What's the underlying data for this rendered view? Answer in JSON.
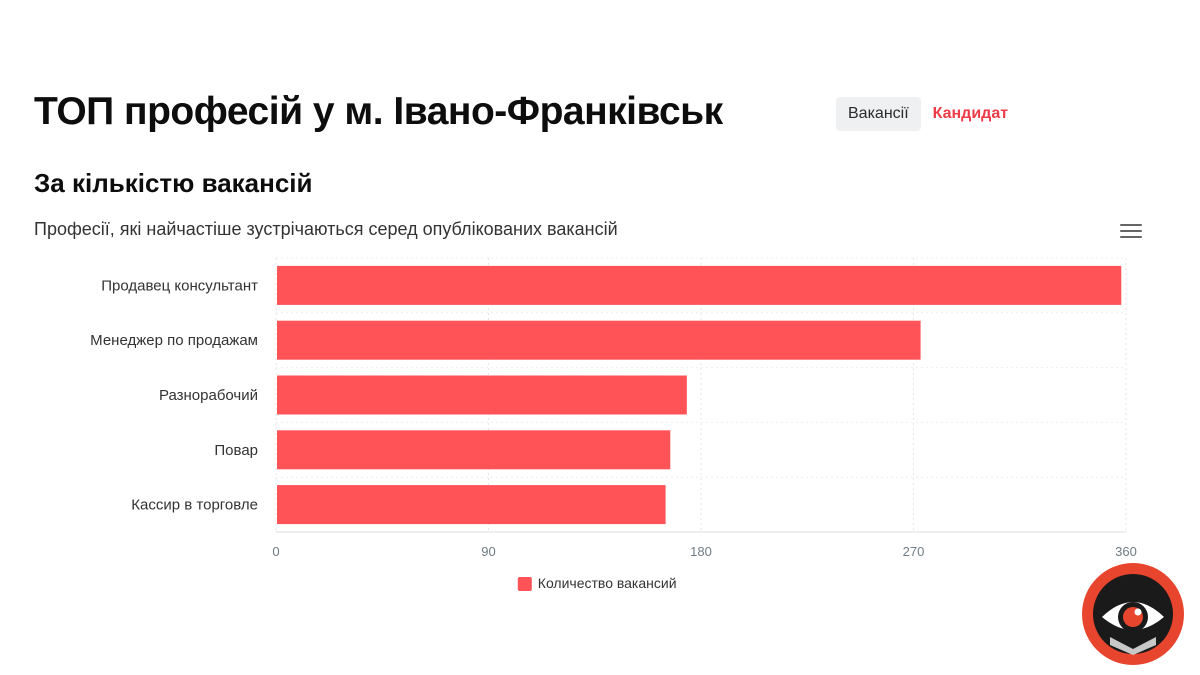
{
  "header": {
    "title": "ТОП професій у м. Івано-Франківськ",
    "tabs": [
      {
        "label": "Вакансії",
        "active": false
      },
      {
        "label": "Кандидат",
        "active": true
      }
    ]
  },
  "section": {
    "title": "За кількістю вакансій",
    "subtitle": "Професії, які найчастіше зустрічаються серед опублікованих вакансій"
  },
  "colors": {
    "bar": "#ff5357",
    "accent": "#ee3b4a",
    "logo_ring": "#e8452e"
  },
  "icons": {
    "menu": "hamburger-menu-icon",
    "logo": "eye-logo-icon"
  },
  "chart_data": {
    "type": "bar",
    "orientation": "horizontal",
    "title": "",
    "subtitle": "Професії, які найчастіше зустрічаються серед опублікованих вакансій",
    "categories": [
      "Продавец консультант",
      "Менеджер по продажам",
      "Разнорабочий",
      "Повар",
      "Кассир в торговле"
    ],
    "series": [
      {
        "name": "Количество вакансий",
        "values": [
          358,
          273,
          174,
          167,
          165
        ],
        "color": "#ff5357"
      }
    ],
    "xlim": [
      0,
      360
    ],
    "xticks": [
      0,
      90,
      180,
      270,
      360
    ],
    "grid": true,
    "legend": "bottom-center"
  }
}
